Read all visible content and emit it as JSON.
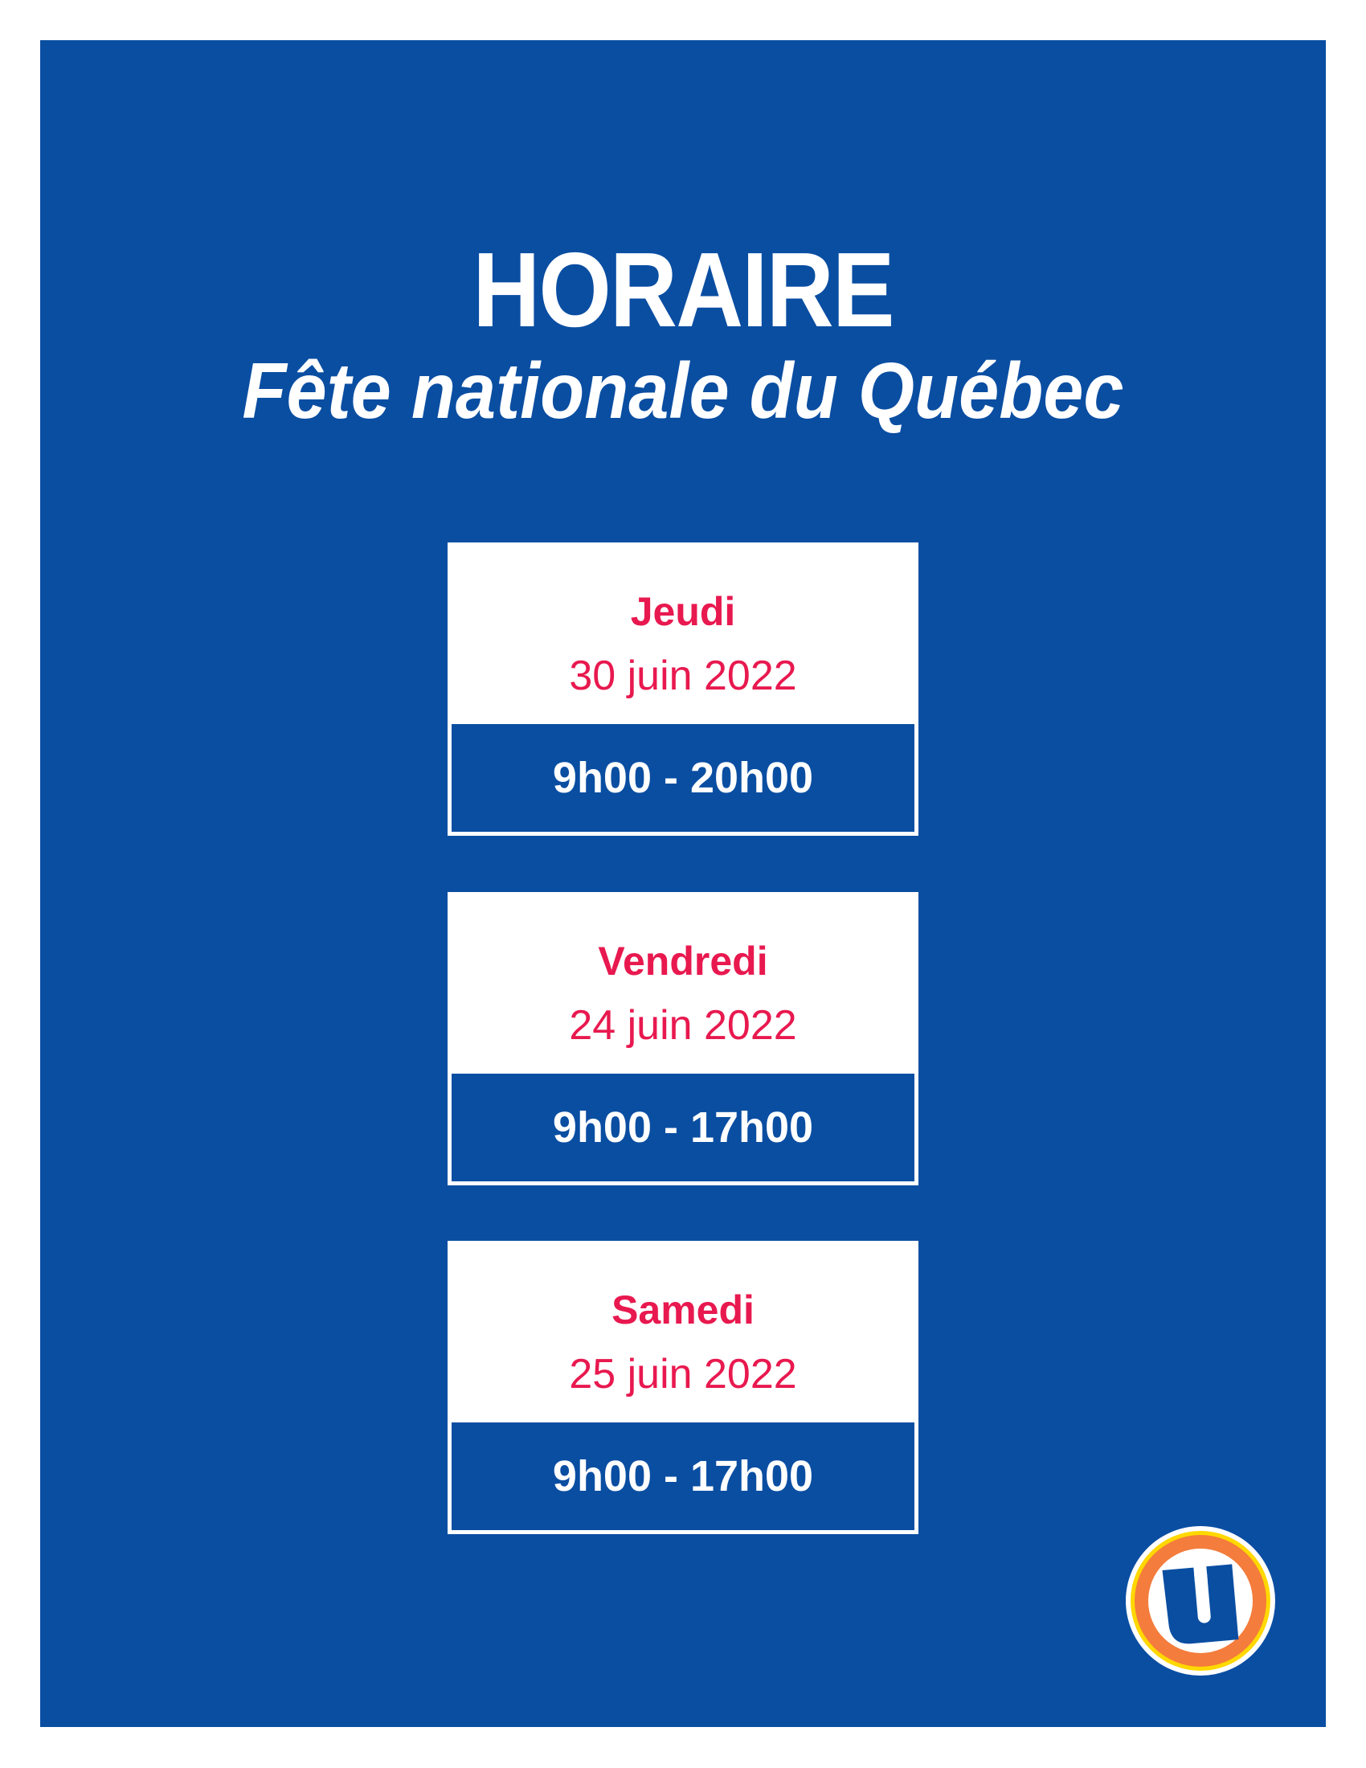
{
  "header": {
    "title": "HORAIRE",
    "subtitle": "Fête nationale du Québec"
  },
  "schedule": [
    {
      "day": "Jeudi",
      "date": "30 juin 2022",
      "hours": "9h00 - 20h00"
    },
    {
      "day": "Vendredi",
      "date": "24 juin 2022",
      "hours": "9h00 - 17h00"
    },
    {
      "day": "Samedi",
      "date": "25 juin 2022",
      "hours": "9h00 - 17h00"
    }
  ],
  "colors": {
    "background": "#0a4ea2",
    "accent": "#e8194f",
    "logo_ring": "#f47c3c",
    "logo_outer": "#ffd800"
  },
  "logo": {
    "icon": "u-logo-icon",
    "text": "U"
  }
}
